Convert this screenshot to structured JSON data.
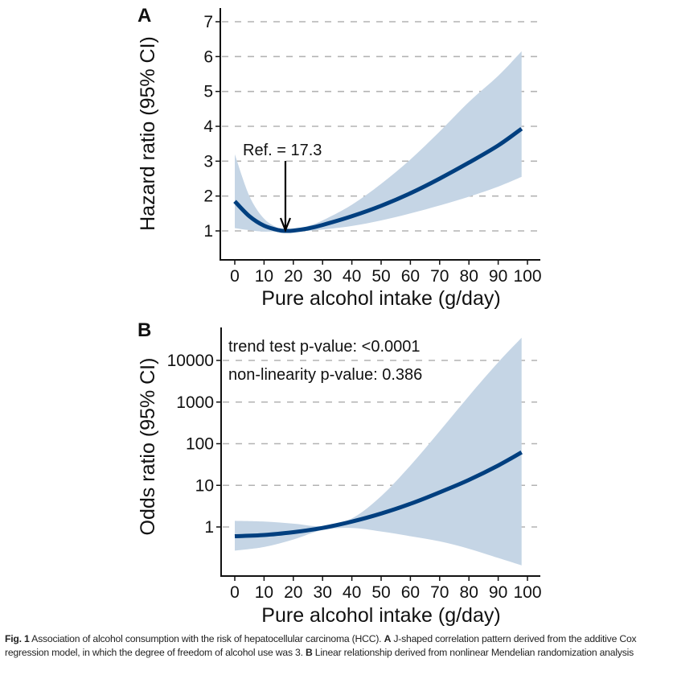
{
  "chart_data": [
    {
      "panel": "A",
      "type": "line",
      "title": "",
      "xlabel": "Pure alcohol intake (g/day)",
      "ylabel": "Hazard ratio (95% CI)",
      "xlim": [
        0,
        100
      ],
      "ylim": [
        0.2,
        7.2
      ],
      "x_ticks": [
        0,
        10,
        20,
        30,
        40,
        50,
        60,
        70,
        80,
        90,
        100
      ],
      "y_ticks": [
        1,
        2,
        3,
        4,
        5,
        6,
        7
      ],
      "y_scale": "linear",
      "grid": "horizontal dashed",
      "annotation": {
        "text": "Ref. = 17.3",
        "x": 17.3,
        "y": 1.0
      },
      "series": [
        {
          "name": "Hazard ratio",
          "color": "#003f7f",
          "x": [
            0,
            5,
            10,
            15,
            17.3,
            20,
            25,
            30,
            40,
            50,
            60,
            70,
            80,
            90,
            98
          ],
          "y": [
            1.85,
            1.42,
            1.15,
            1.02,
            1.0,
            1.01,
            1.07,
            1.17,
            1.42,
            1.72,
            2.08,
            2.5,
            2.96,
            3.45,
            3.93
          ]
        },
        {
          "name": "95% CI upper",
          "color": "#c5d5e5",
          "x": [
            0,
            5,
            10,
            15,
            17.3,
            20,
            25,
            30,
            40,
            50,
            60,
            70,
            80,
            90,
            98
          ],
          "y": [
            3.2,
            2.0,
            1.35,
            1.07,
            1.0,
            1.03,
            1.14,
            1.3,
            1.75,
            2.35,
            3.05,
            3.85,
            4.7,
            5.45,
            6.15
          ]
        },
        {
          "name": "95% CI lower",
          "color": "#c5d5e5",
          "x": [
            0,
            5,
            10,
            15,
            17.3,
            20,
            25,
            30,
            40,
            50,
            60,
            70,
            80,
            90,
            98
          ],
          "y": [
            1.08,
            1.02,
            0.98,
            0.99,
            1.0,
            0.99,
            1.0,
            1.04,
            1.14,
            1.3,
            1.5,
            1.73,
            1.98,
            2.27,
            2.55
          ]
        }
      ]
    },
    {
      "panel": "B",
      "type": "line",
      "title": "",
      "xlabel": "Pure alcohol intake (g/day)",
      "ylabel": "Odds ratio (95% CI)",
      "xlim": [
        0,
        100
      ],
      "ylim": [
        0.066,
        40000
      ],
      "x_ticks": [
        0,
        10,
        20,
        30,
        40,
        50,
        60,
        70,
        80,
        90,
        100
      ],
      "y_ticks": [
        1,
        10,
        100,
        1000,
        10000
      ],
      "y_scale": "log",
      "grid": "horizontal dashed",
      "annotations": [
        "trend test p-value: <0.0001",
        "non-linearity p-value: 0.386"
      ],
      "series": [
        {
          "name": "Odds ratio",
          "color": "#003f7f",
          "x": [
            0,
            10,
            20,
            30,
            40,
            50,
            60,
            70,
            80,
            90,
            98
          ],
          "y": [
            0.6,
            0.64,
            0.75,
            0.95,
            1.35,
            2.1,
            3.6,
            6.8,
            13.5,
            30,
            62
          ]
        },
        {
          "name": "95% CI upper",
          "color": "#c5d5e5",
          "x": [
            0,
            10,
            20,
            30,
            40,
            50,
            60,
            70,
            80,
            90,
            98
          ],
          "y": [
            1.4,
            1.35,
            1.2,
            1.05,
            1.6,
            5.5,
            30,
            200,
            1400,
            9000,
            35000
          ]
        },
        {
          "name": "95% CI lower",
          "color": "#c5d5e5",
          "x": [
            0,
            10,
            20,
            30,
            40,
            50,
            60,
            70,
            80,
            90,
            98
          ],
          "y": [
            0.27,
            0.33,
            0.5,
            0.85,
            0.95,
            0.78,
            0.6,
            0.45,
            0.3,
            0.18,
            0.12
          ]
        }
      ]
    }
  ],
  "caption": {
    "fig_label": "Fig. 1",
    "text_1": "  Association of alcohol consumption with the risk of hepatocellular carcinoma (HCC). ",
    "label_a": "A",
    "text_2": " J-shaped correlation pattern derived from the additive Cox regression model, in which the degree of freedom of alcohol use was 3. ",
    "label_b": "B",
    "text_3": " Linear relationship derived from nonlinear Mendelian randomization analysis"
  }
}
